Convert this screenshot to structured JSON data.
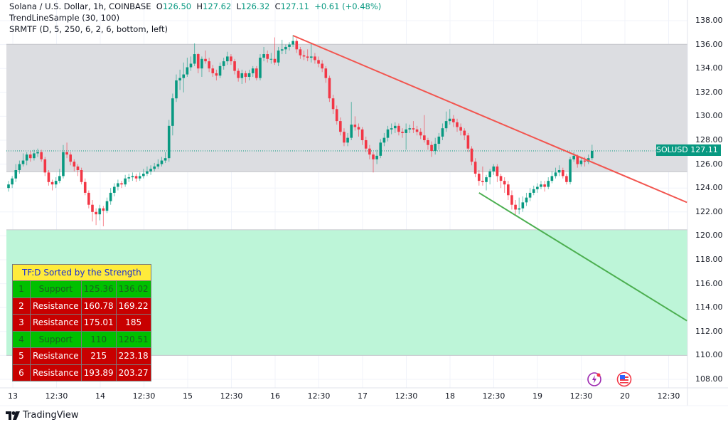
{
  "header": {
    "symbol_line": "Solana / U.S. Dollar, 1h, COINBASE",
    "o_label": "O",
    "o": "126.50",
    "h_label": "H",
    "h": "127.62",
    "l_label": "L",
    "l": "126.32",
    "c_label": "C",
    "c": "127.11",
    "change": "+0.61 (+0.48%)",
    "indicator_1": "TrendLineSample (30, 100)",
    "indicator_2": "SRMTF (D, 5, 250, 6, 2, 6, bottom, left)"
  },
  "price_label": {
    "symbol": "SOLUSD",
    "value": "127.11"
  },
  "srmtf_table": {
    "title": "TF:D Sorted by the Strength",
    "rows": [
      {
        "n": "1",
        "type": "Support",
        "low": "125.36",
        "high": "136.02"
      },
      {
        "n": "2",
        "type": "Resistance",
        "low": "160.78",
        "high": "169.22"
      },
      {
        "n": "3",
        "type": "Resistance",
        "low": "175.01",
        "high": "185"
      },
      {
        "n": "4",
        "type": "Support",
        "low": "110",
        "high": "120.51"
      },
      {
        "n": "5",
        "type": "Resistance",
        "low": "215",
        "high": "223.18"
      },
      {
        "n": "6",
        "type": "Resistance",
        "low": "193.89",
        "high": "203.27"
      }
    ]
  },
  "footer": {
    "brand": "TradingView"
  },
  "icons": [
    "lightning-events-icon",
    "us-flag-economic-icon"
  ],
  "colors": {
    "up": "#089981",
    "down": "#f23645",
    "support_zone": "#bdf5d8",
    "resistance_zone": "#dcdde1",
    "trend_down": "#f2554f",
    "trend_support": "#4caf50"
  },
  "chart_data": {
    "type": "candlestick",
    "interval": "1h",
    "first_candle": "12 23:00",
    "ylim": [
      107,
      139
    ],
    "yticks": [
      "138.00",
      "136.00",
      "134.00",
      "132.00",
      "130.00",
      "128.00",
      "126.00",
      "124.00",
      "122.00",
      "120.00",
      "118.00",
      "116.00",
      "114.00",
      "112.00",
      "110.00",
      "108.00"
    ],
    "xticks": [
      "13",
      "12:30",
      "14",
      "12:30",
      "15",
      "12:30",
      "16",
      "12:30",
      "17",
      "12:30",
      "18",
      "12:30",
      "19",
      "12:30",
      "20",
      "12:30"
    ],
    "grid": true,
    "last_price": 127.11,
    "zones": [
      {
        "type": "Support",
        "low": 125.36,
        "high": 136.02,
        "color": "#dcdde1"
      },
      {
        "type": "Support",
        "low": 110,
        "high": 120.51,
        "color": "#bdf5d8"
      }
    ],
    "trendlines": [
      {
        "from": {
          "time": "16 05:00",
          "price": 136.75
        },
        "to": {
          "time": "20 17:00",
          "price": 122.8
        },
        "color": "#f2554f"
      },
      {
        "from": {
          "time": "18 08:00",
          "price": 123.6
        },
        "to": {
          "time": "20 17:00",
          "price": 112.9
        },
        "color": "#4caf50"
      }
    ],
    "candles_ohlc": [
      [
        124.0,
        124.6,
        123.7,
        124.3
      ],
      [
        124.3,
        125.0,
        124.0,
        124.8
      ],
      [
        124.8,
        126.0,
        124.5,
        125.5
      ],
      [
        125.5,
        126.3,
        125.2,
        126.0
      ],
      [
        126.0,
        126.9,
        125.8,
        126.3
      ],
      [
        126.3,
        127.0,
        125.9,
        126.8
      ],
      [
        126.8,
        127.1,
        126.2,
        126.5
      ],
      [
        126.5,
        127.2,
        126.3,
        126.9
      ],
      [
        126.9,
        127.3,
        126.6,
        127.0
      ],
      [
        127.0,
        127.2,
        126.2,
        126.4
      ],
      [
        126.4,
        126.6,
        125.0,
        125.3
      ],
      [
        125.3,
        125.5,
        124.2,
        124.5
      ],
      [
        124.5,
        124.7,
        123.8,
        124.3
      ],
      [
        124.3,
        124.9,
        124.0,
        124.6
      ],
      [
        124.6,
        125.6,
        124.4,
        125.0
      ],
      [
        125.0,
        127.6,
        124.8,
        127.0
      ],
      [
        127.0,
        127.8,
        126.5,
        126.8
      ],
      [
        126.8,
        127.0,
        125.9,
        126.2
      ],
      [
        126.2,
        126.4,
        125.4,
        125.8
      ],
      [
        125.8,
        126.0,
        125.0,
        125.5
      ],
      [
        125.5,
        125.7,
        124.3,
        124.5
      ],
      [
        124.5,
        124.8,
        123.4,
        123.6
      ],
      [
        123.6,
        123.8,
        122.3,
        122.6
      ],
      [
        122.6,
        123.0,
        121.2,
        122.0
      ],
      [
        122.0,
        122.3,
        120.9,
        121.8
      ],
      [
        121.8,
        122.6,
        121.3,
        122.3
      ],
      [
        122.3,
        122.5,
        120.8,
        122.1
      ],
      [
        122.1,
        123.2,
        121.9,
        122.9
      ],
      [
        122.9,
        124.0,
        122.6,
        123.6
      ],
      [
        123.6,
        124.4,
        123.3,
        124.1
      ],
      [
        124.1,
        124.7,
        123.8,
        124.4
      ],
      [
        124.4,
        124.6,
        124.0,
        124.3
      ],
      [
        124.3,
        125.1,
        124.1,
        124.8
      ],
      [
        124.8,
        125.2,
        124.5,
        124.9
      ],
      [
        124.9,
        125.3,
        124.6,
        125.0
      ],
      [
        125.0,
        125.2,
        124.5,
        124.8
      ],
      [
        124.8,
        125.3,
        124.6,
        125.0
      ],
      [
        125.0,
        125.6,
        124.8,
        125.2
      ],
      [
        125.2,
        125.8,
        125.0,
        125.4
      ],
      [
        125.4,
        125.9,
        125.1,
        125.6
      ],
      [
        125.6,
        126.1,
        125.4,
        125.8
      ],
      [
        125.8,
        126.4,
        125.6,
        126.0
      ],
      [
        126.0,
        126.6,
        125.8,
        126.3
      ],
      [
        126.3,
        127.0,
        126.1,
        126.5
      ],
      [
        126.5,
        129.7,
        126.2,
        129.2
      ],
      [
        129.2,
        131.9,
        128.4,
        131.5
      ],
      [
        131.5,
        133.5,
        131.2,
        133.0
      ],
      [
        133.0,
        133.9,
        132.2,
        133.2
      ],
      [
        133.2,
        134.5,
        132.0,
        133.5
      ],
      [
        133.5,
        134.9,
        133.3,
        134.1
      ],
      [
        134.1,
        135.0,
        133.8,
        134.4
      ],
      [
        134.4,
        136.1,
        134.2,
        135.2
      ],
      [
        135.2,
        135.3,
        133.6,
        134.0
      ],
      [
        134.0,
        135.0,
        133.3,
        134.8
      ],
      [
        134.8,
        135.5,
        134.4,
        134.6
      ],
      [
        134.6,
        134.9,
        133.7,
        134.0
      ],
      [
        134.0,
        134.3,
        133.3,
        133.6
      ],
      [
        133.6,
        133.9,
        133.0,
        133.4
      ],
      [
        133.4,
        134.5,
        133.2,
        134.2
      ],
      [
        134.2,
        134.9,
        133.9,
        134.6
      ],
      [
        134.6,
        135.4,
        134.3,
        135.0
      ],
      [
        135.0,
        135.2,
        134.3,
        134.6
      ],
      [
        134.6,
        134.8,
        133.5,
        133.8
      ],
      [
        133.8,
        134.0,
        132.9,
        133.2
      ],
      [
        133.2,
        133.9,
        132.7,
        133.6
      ],
      [
        133.6,
        133.8,
        132.8,
        133.3
      ],
      [
        133.3,
        133.9,
        133.0,
        133.6
      ],
      [
        133.6,
        134.2,
        133.3,
        134.0
      ],
      [
        134.0,
        134.2,
        133.0,
        133.2
      ],
      [
        133.2,
        135.2,
        133.0,
        134.9
      ],
      [
        134.9,
        135.8,
        134.6,
        135.2
      ],
      [
        135.2,
        135.5,
        134.5,
        134.8
      ],
      [
        134.8,
        135.3,
        134.4,
        134.8
      ],
      [
        134.8,
        136.6,
        134.3,
        134.5
      ],
      [
        134.5,
        135.8,
        134.2,
        135.5
      ],
      [
        135.5,
        136.4,
        135.2,
        135.6
      ],
      [
        135.6,
        136.0,
        135.2,
        135.8
      ],
      [
        135.8,
        136.2,
        135.5,
        136.0
      ],
      [
        136.0,
        136.8,
        135.8,
        136.3
      ],
      [
        136.3,
        136.5,
        135.3,
        135.6
      ],
      [
        135.6,
        135.8,
        134.8,
        135.1
      ],
      [
        135.1,
        135.5,
        134.7,
        135.0
      ],
      [
        135.0,
        135.6,
        134.6,
        134.9
      ],
      [
        134.9,
        136.1,
        134.5,
        135.0
      ],
      [
        135.0,
        135.3,
        134.4,
        134.7
      ],
      [
        134.7,
        135.0,
        134.1,
        134.4
      ],
      [
        134.4,
        134.7,
        133.7,
        134.0
      ],
      [
        134.0,
        134.2,
        132.8,
        133.2
      ],
      [
        133.2,
        133.4,
        131.2,
        131.5
      ],
      [
        131.5,
        131.8,
        130.2,
        130.6
      ],
      [
        130.6,
        130.9,
        129.3,
        129.6
      ],
      [
        129.6,
        129.9,
        128.4,
        128.7
      ],
      [
        128.7,
        129.0,
        127.5,
        127.8
      ],
      [
        127.8,
        128.6,
        127.5,
        128.2
      ],
      [
        128.2,
        131.2,
        128.0,
        129.3
      ],
      [
        129.3,
        130.0,
        128.8,
        129.1
      ],
      [
        129.1,
        129.4,
        128.3,
        128.9
      ],
      [
        128.9,
        129.1,
        127.6,
        128.0
      ],
      [
        128.0,
        128.3,
        127.0,
        127.3
      ],
      [
        127.3,
        127.6,
        126.4,
        126.8
      ],
      [
        126.8,
        127.0,
        125.3,
        126.4
      ],
      [
        126.4,
        127.2,
        126.0,
        126.7
      ],
      [
        126.7,
        128.1,
        126.5,
        127.8
      ],
      [
        127.8,
        128.6,
        127.5,
        128.2
      ],
      [
        128.2,
        129.2,
        127.9,
        128.9
      ],
      [
        128.9,
        129.4,
        128.5,
        129.0
      ],
      [
        129.0,
        129.5,
        128.6,
        129.2
      ],
      [
        129.2,
        129.4,
        128.4,
        128.7
      ],
      [
        128.7,
        129.0,
        128.2,
        128.6
      ],
      [
        128.6,
        129.4,
        127.2,
        128.9
      ],
      [
        128.9,
        129.3,
        128.6,
        129.0
      ],
      [
        129.0,
        129.6,
        128.6,
        128.9
      ],
      [
        128.9,
        129.2,
        128.4,
        128.7
      ],
      [
        128.7,
        129.0,
        128.1,
        128.4
      ],
      [
        128.4,
        130.1,
        127.8,
        128.0
      ],
      [
        128.0,
        128.2,
        127.2,
        127.6
      ],
      [
        127.6,
        127.9,
        126.6,
        127.1
      ],
      [
        127.1,
        128.2,
        126.8,
        127.7
      ],
      [
        127.7,
        128.6,
        127.2,
        128.3
      ],
      [
        128.3,
        129.4,
        128.0,
        129.0
      ],
      [
        129.0,
        130.4,
        128.7,
        129.6
      ],
      [
        129.6,
        130.6,
        129.3,
        129.8
      ],
      [
        129.8,
        130.1,
        129.1,
        129.5
      ],
      [
        129.5,
        129.8,
        128.7,
        129.1
      ],
      [
        129.1,
        129.4,
        128.4,
        128.8
      ],
      [
        128.8,
        129.0,
        128.0,
        128.4
      ],
      [
        128.4,
        128.6,
        127.0,
        127.3
      ],
      [
        127.3,
        127.5,
        125.9,
        126.2
      ],
      [
        126.2,
        126.5,
        124.9,
        125.2
      ],
      [
        125.2,
        125.5,
        124.2,
        124.6
      ],
      [
        124.6,
        125.8,
        124.2,
        124.5
      ],
      [
        124.5,
        125.1,
        123.8,
        124.9
      ],
      [
        124.9,
        125.6,
        124.3,
        125.4
      ],
      [
        125.4,
        126.0,
        125.1,
        125.8
      ],
      [
        125.8,
        126.0,
        124.5,
        125.0
      ],
      [
        125.0,
        125.2,
        124.0,
        124.6
      ],
      [
        124.6,
        124.9,
        123.6,
        124.3
      ],
      [
        124.3,
        124.6,
        123.0,
        123.4
      ],
      [
        123.4,
        123.8,
        122.2,
        122.6
      ],
      [
        122.6,
        123.0,
        121.7,
        122.2
      ],
      [
        122.2,
        123.2,
        121.8,
        122.3
      ],
      [
        122.3,
        123.3,
        122.0,
        122.8
      ],
      [
        122.8,
        123.6,
        122.5,
        123.2
      ],
      [
        123.2,
        124.0,
        122.9,
        123.6
      ],
      [
        123.6,
        124.2,
        123.4,
        123.9
      ],
      [
        123.9,
        124.4,
        123.6,
        124.1
      ],
      [
        124.1,
        124.6,
        123.9,
        124.3
      ],
      [
        124.3,
        124.6,
        123.7,
        124.1
      ],
      [
        124.1,
        124.9,
        123.9,
        124.6
      ],
      [
        124.6,
        125.4,
        124.4,
        125.0
      ],
      [
        125.0,
        125.7,
        124.8,
        125.3
      ],
      [
        125.3,
        125.9,
        125.0,
        125.5
      ],
      [
        125.5,
        125.7,
        124.8,
        125.0
      ],
      [
        125.0,
        125.2,
        124.3,
        124.5
      ],
      [
        124.5,
        126.6,
        124.3,
        126.4
      ],
      [
        126.4,
        127.0,
        126.2,
        126.7
      ],
      [
        126.7,
        126.8,
        125.7,
        126.0
      ],
      [
        126.0,
        126.6,
        125.8,
        126.3
      ],
      [
        126.3,
        126.6,
        125.8,
        126.2
      ],
      [
        126.2,
        126.8,
        126.0,
        126.5
      ],
      [
        126.5,
        127.62,
        126.32,
        127.11
      ]
    ]
  }
}
